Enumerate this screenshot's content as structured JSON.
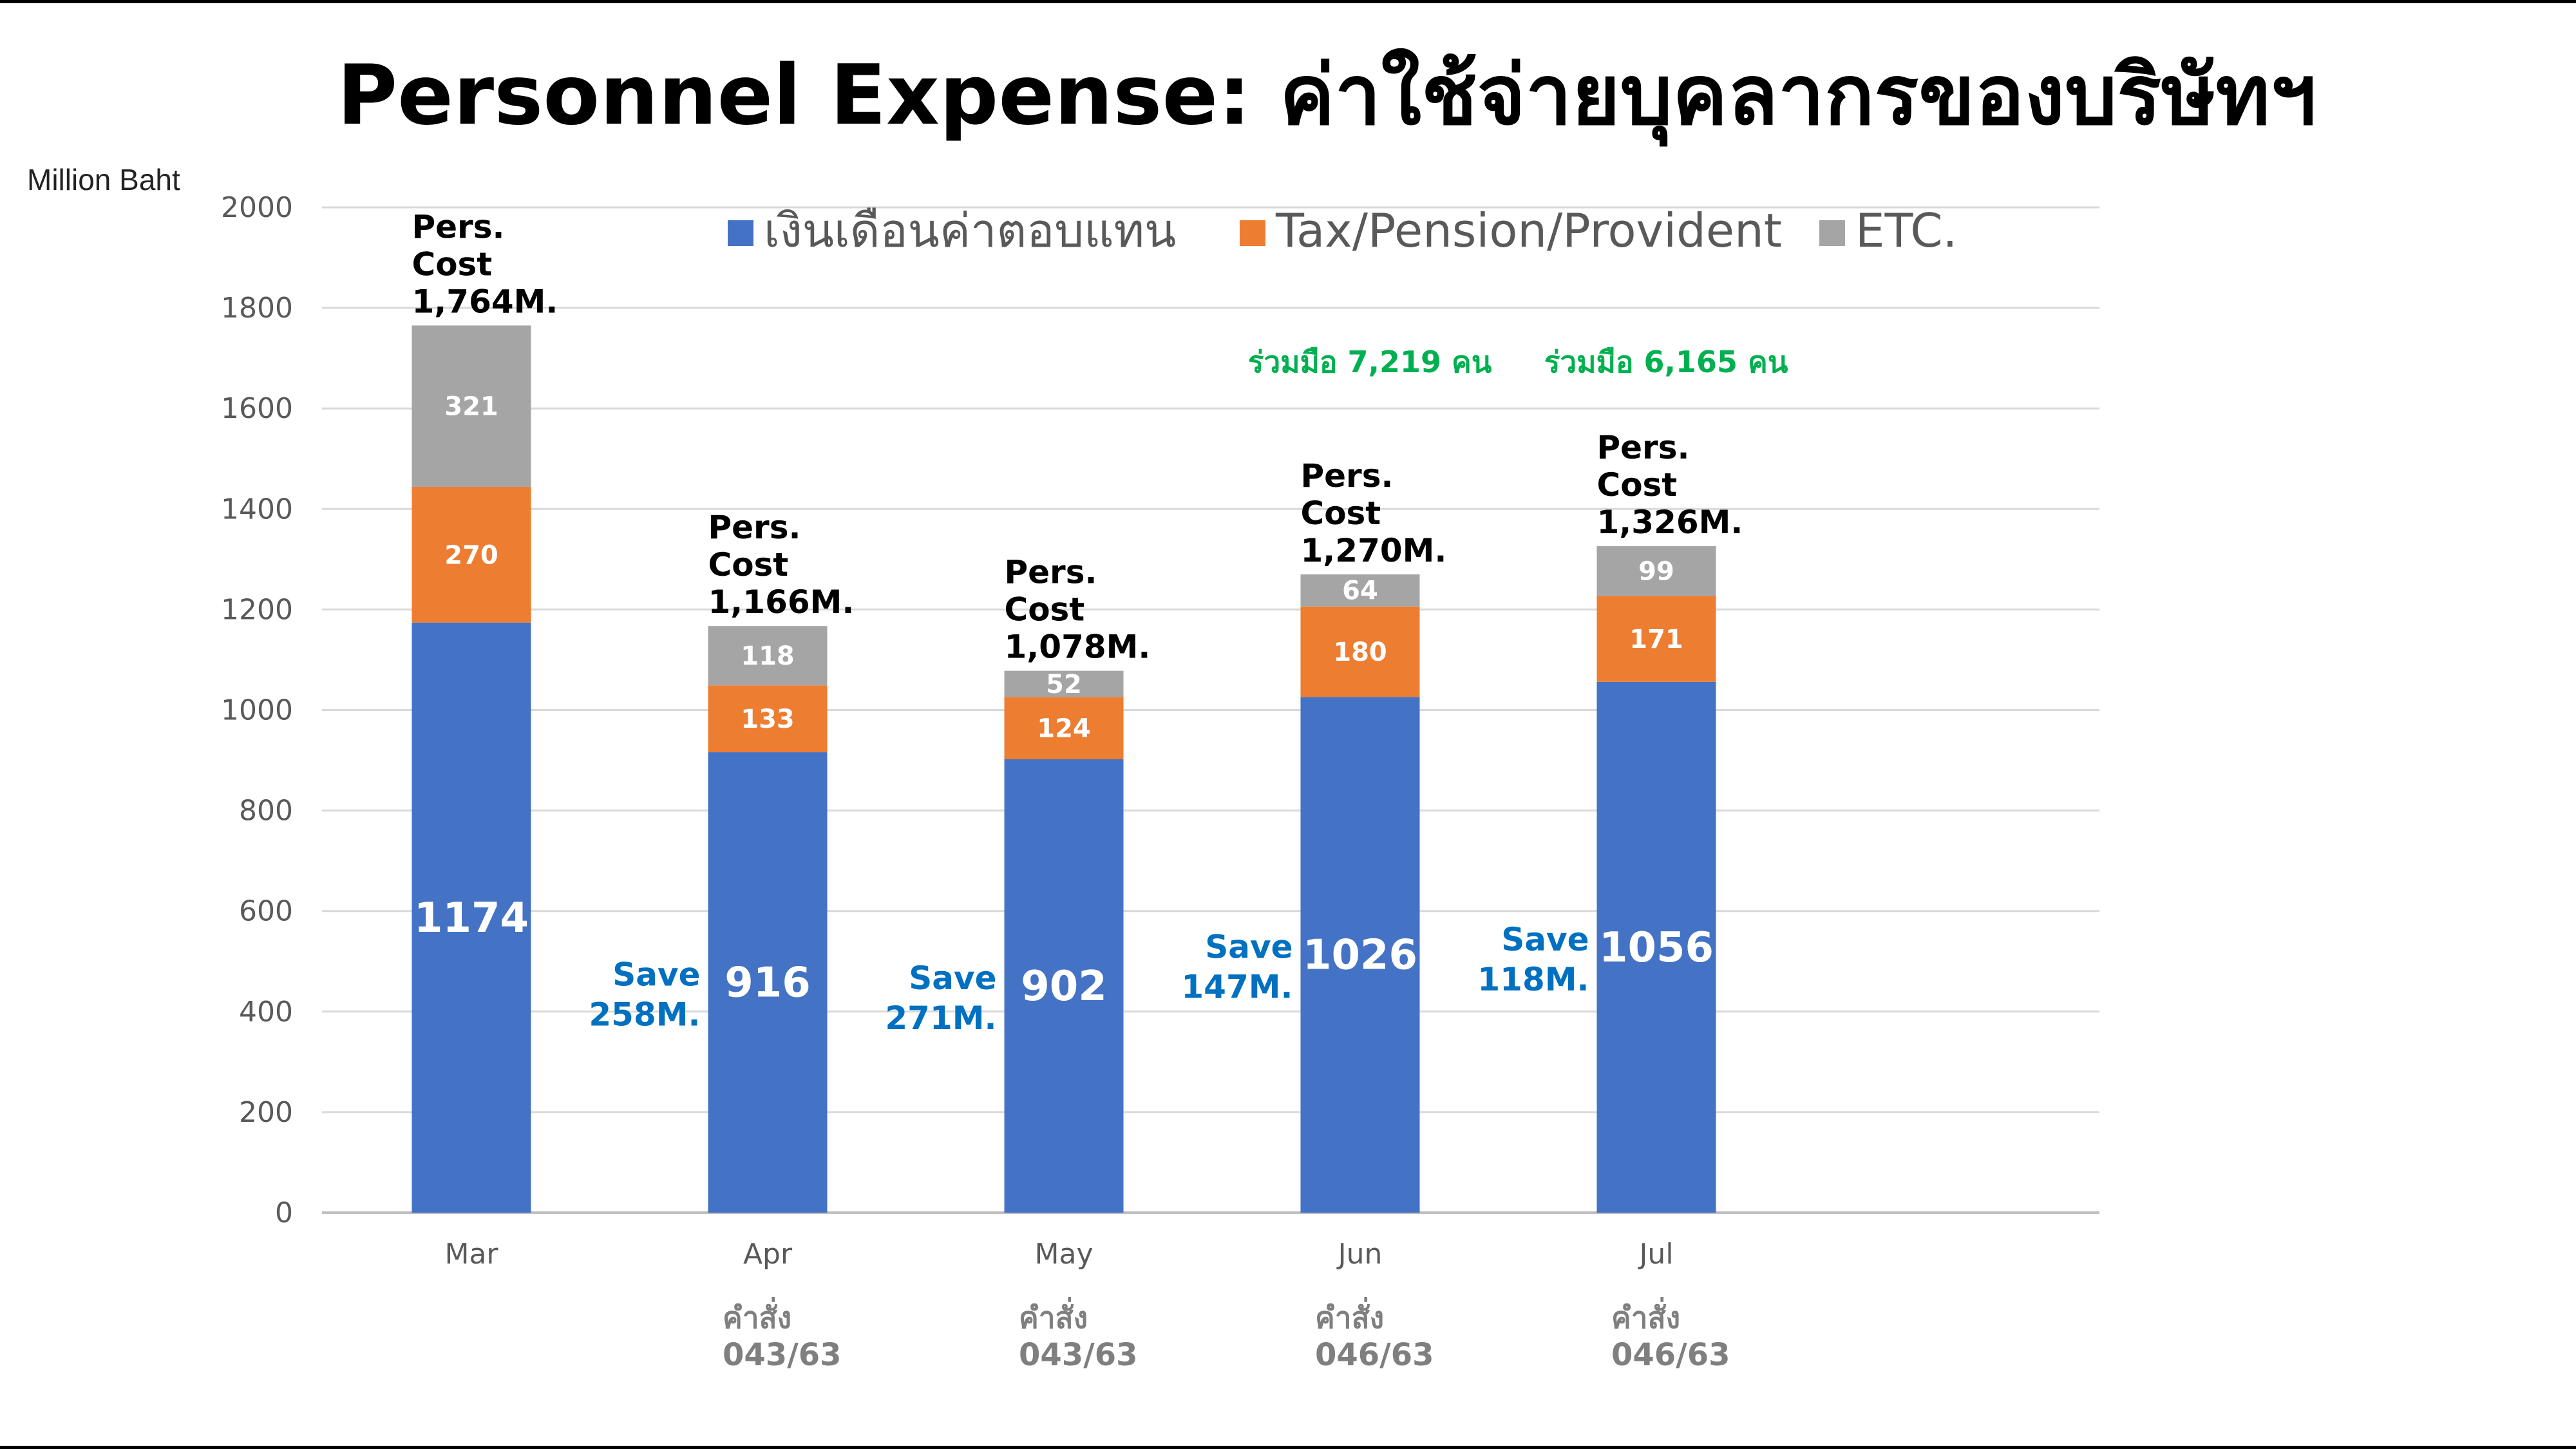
{
  "title": "Personnel Expense: ค่าใช้จ่ายบุคลากรของบริษัทฯ",
  "chart_data": {
    "type": "bar",
    "stacked": true,
    "ylabel": "Million Baht",
    "ylim": [
      0,
      2000
    ],
    "yticks": [
      0,
      200,
      400,
      600,
      800,
      1000,
      1200,
      1400,
      1600,
      1800,
      2000
    ],
    "grid": true,
    "legend_position": "top",
    "categories": [
      "Mar",
      "Apr",
      "May",
      "Jun",
      "Jul"
    ],
    "category_notes": [
      {
        "line1": "",
        "line2": ""
      },
      {
        "line1": "คำสั่ง",
        "line2": "043/63"
      },
      {
        "line1": "คำสั่ง",
        "line2": "043/63"
      },
      {
        "line1": "คำสั่ง",
        "line2": "046/63"
      },
      {
        "line1": "คำสั่ง",
        "line2": "046/63"
      }
    ],
    "series": [
      {
        "name": "เงินเดือนค่าตอบแทน",
        "color": "#4472c4",
        "values": [
          1174,
          916,
          902,
          1026,
          1056
        ]
      },
      {
        "name": "Tax/Pension/Provident",
        "color": "#ed7d31",
        "values": [
          270,
          133,
          124,
          180,
          171
        ]
      },
      {
        "name": "ETC.",
        "color": "#a5a5a5",
        "values": [
          321,
          118,
          52,
          64,
          99
        ]
      }
    ],
    "total_labels": [
      [
        "Pers.",
        "Cost",
        "1,764M."
      ],
      [
        "Pers.",
        "Cost",
        "1,166M."
      ],
      [
        "Pers.",
        "Cost",
        "1,078M."
      ],
      [
        "Pers.",
        "Cost",
        "1,270M."
      ],
      [
        "Pers.",
        "Cost",
        "1,326M."
      ]
    ],
    "save_labels": [
      null,
      [
        "Save",
        "258M."
      ],
      [
        "Save",
        "271M."
      ],
      [
        "Save",
        "147M."
      ],
      [
        "Save",
        "118M."
      ]
    ],
    "annotations": [
      {
        "text": "ร่วมมือ 7,219 คน",
        "category": "Jun",
        "color": "#00b050"
      },
      {
        "text": "ร่วมมือ 6,165 คน",
        "category": "Jul",
        "color": "#00b050"
      }
    ]
  }
}
